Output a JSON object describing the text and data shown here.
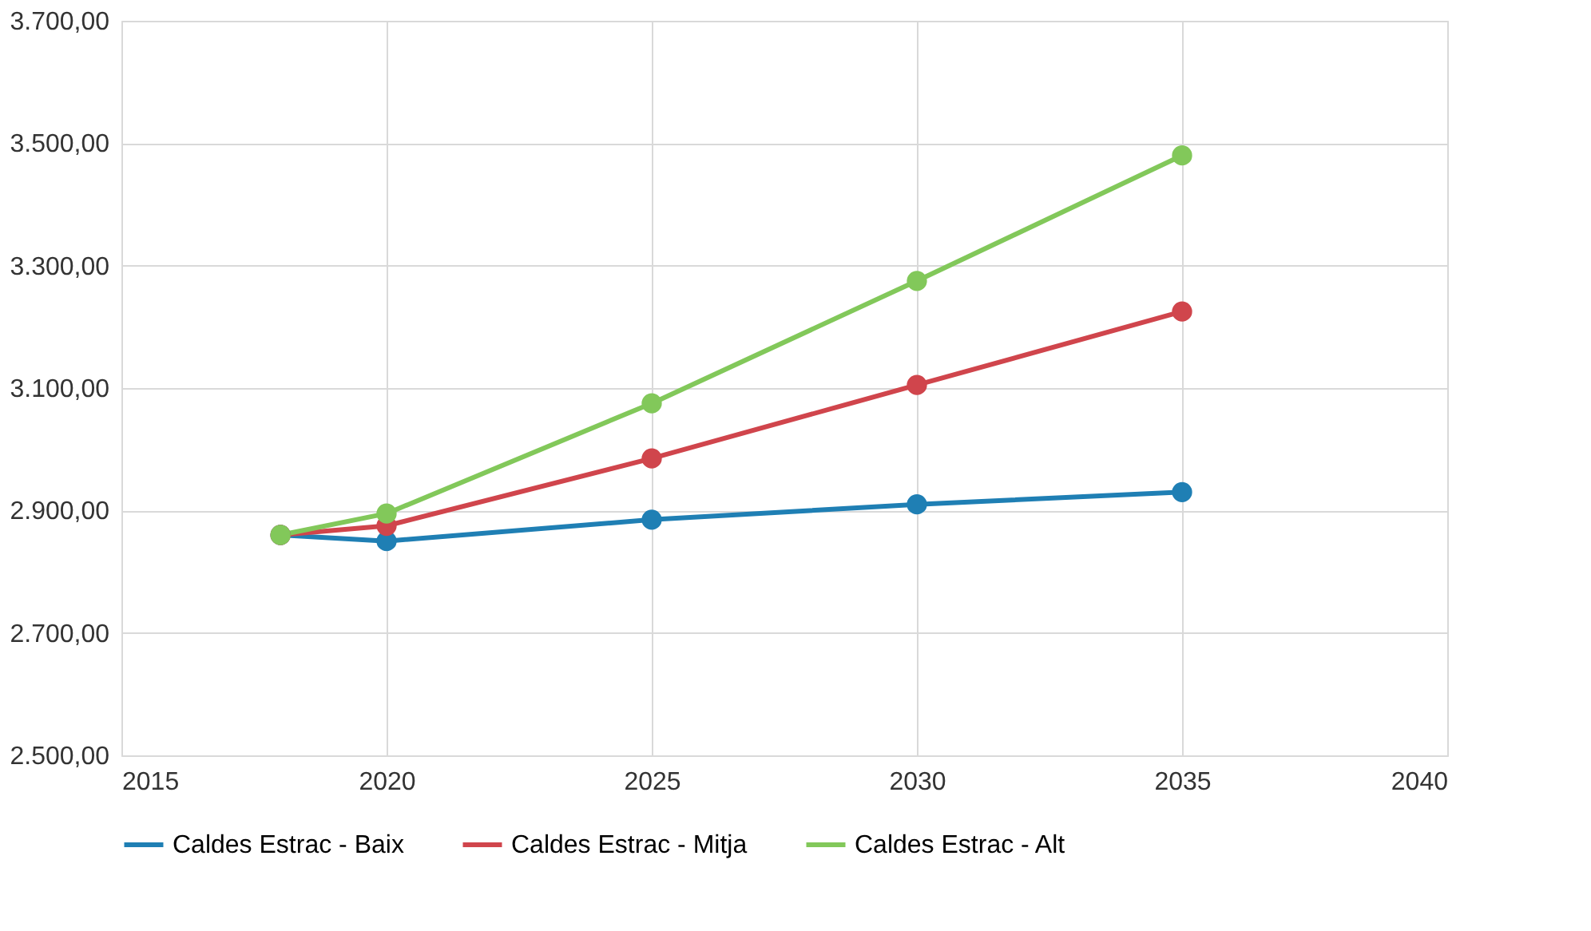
{
  "chart_data": {
    "type": "line",
    "x": [
      2018,
      2020,
      2025,
      2030,
      2035
    ],
    "series": [
      {
        "name": "Caldes Estrac - Baix",
        "color": "#1f7fb4",
        "values": [
          2860,
          2850,
          2885,
          2910,
          2930
        ]
      },
      {
        "name": "Caldes Estrac - Mitja",
        "color": "#d0454c",
        "values": [
          2860,
          2875,
          2985,
          3105,
          3225
        ]
      },
      {
        "name": "Caldes Estrac - Alt",
        "color": "#82c85a",
        "values": [
          2860,
          2895,
          3075,
          3275,
          3480
        ]
      }
    ],
    "xlim": [
      2015,
      2040
    ],
    "xticks": [
      2015,
      2020,
      2025,
      2030,
      2035,
      2040
    ],
    "ylim": [
      2500,
      3700
    ],
    "yticks": [
      {
        "value": 2500,
        "label": "2.500,00"
      },
      {
        "value": 2700,
        "label": "2.700,00"
      },
      {
        "value": 2900,
        "label": "2.900,00"
      },
      {
        "value": 3100,
        "label": "3.100,00"
      },
      {
        "value": 3300,
        "label": "3.300,00"
      },
      {
        "value": 3500,
        "label": "3.500,00"
      },
      {
        "value": 3700,
        "label": "3.700,00"
      }
    ],
    "grid": true,
    "legend": "bottom",
    "marker": "circle",
    "line_style": "solid"
  }
}
